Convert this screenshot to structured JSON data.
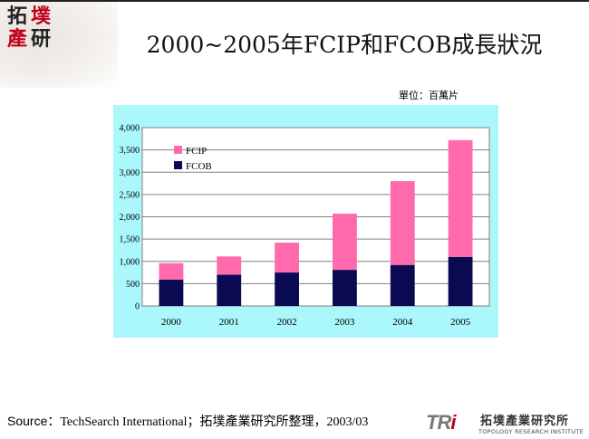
{
  "logo": {
    "chars": [
      "拓",
      "墣",
      "產",
      "研"
    ]
  },
  "title": "2000~2005年FCIP和FCOB成長狀況",
  "unit_label": "單位：百萬片",
  "source": {
    "key": "Source：",
    "text": "TechSearch International；拓墣產業研究所整理，2003/03"
  },
  "footer_logo": {
    "mark": "TRi",
    "mark_letters": [
      "TR",
      "i"
    ],
    "name": "拓墣產業研究所",
    "english": "TOPOLOGY RESEARCH INSTITUTE"
  },
  "colors": {
    "panel_bg": "#aaf8fb",
    "plot_bg": "#ffffff",
    "fcip": "#ff6aad",
    "fcob": "#0a0a52"
  },
  "chart_data": {
    "type": "bar",
    "stacked": true,
    "categories": [
      "2000",
      "2001",
      "2002",
      "2003",
      "2004",
      "2005"
    ],
    "series": [
      {
        "name": "FCOB",
        "values": [
          590,
          700,
          750,
          810,
          920,
          1100
        ]
      },
      {
        "name": "FCIP",
        "values": [
          370,
          410,
          670,
          1260,
          1880,
          2620
        ]
      }
    ],
    "yticks": [
      "0",
      "500",
      "1,000",
      "1,500",
      "2,000",
      "2,500",
      "3,000",
      "3,500",
      "4,000"
    ],
    "ylim": [
      0,
      4000
    ],
    "legend": [
      "FCIP",
      "FCOB"
    ],
    "legend_position": "top-left",
    "grid": true
  }
}
